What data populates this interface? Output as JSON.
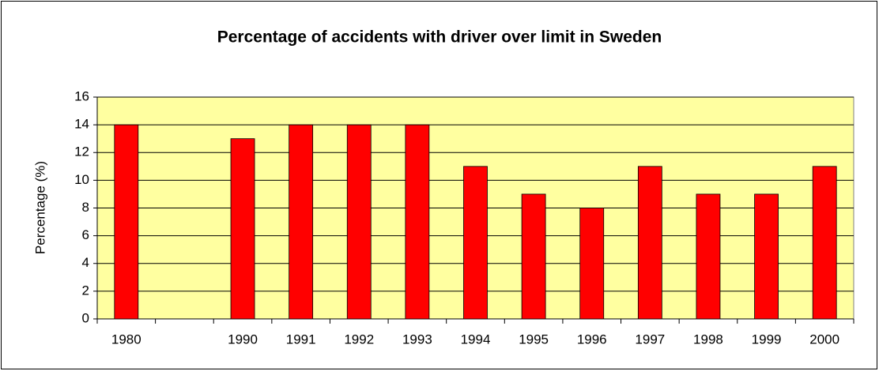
{
  "chart_data": {
    "type": "bar",
    "title": "Percentage of accidents with driver over limit in Sweden",
    "y_label": "Percentage (%)",
    "categories": [
      "1980",
      null,
      "1990",
      "1991",
      "1992",
      "1993",
      "1994",
      "1995",
      "1996",
      "1997",
      "1998",
      "1999",
      "2000"
    ],
    "values": [
      14,
      null,
      13,
      14,
      14,
      14,
      11,
      9,
      8,
      11,
      9,
      9,
      11
    ],
    "color": "#ff0000",
    "ylim": [
      0,
      16
    ],
    "yticks": [
      0,
      2,
      4,
      6,
      8,
      10,
      12,
      14,
      16
    ],
    "grid": true
  }
}
